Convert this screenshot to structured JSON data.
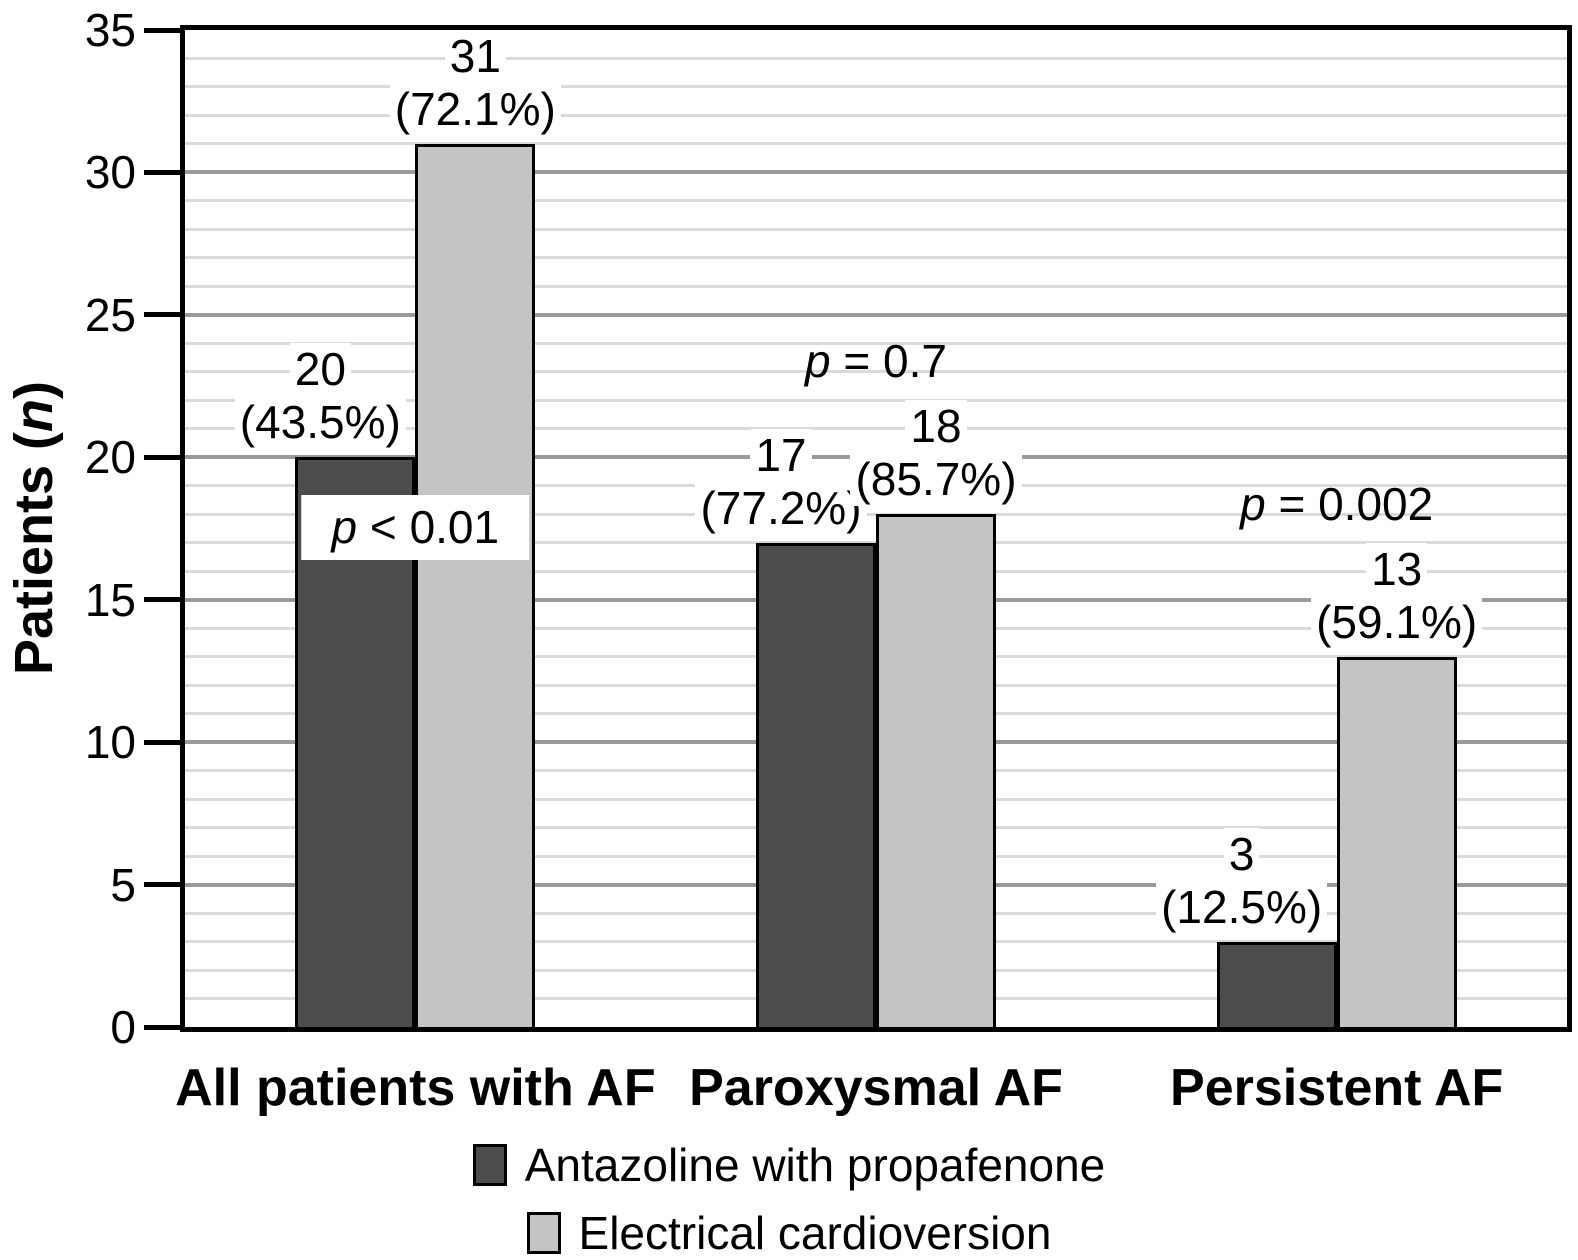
{
  "chart_data": {
    "type": "bar",
    "title": "",
    "ylabel": "Patients (n)",
    "ylabel_italic_part": "n",
    "ylim": [
      0,
      35
    ],
    "yticks": [
      0,
      5,
      10,
      15,
      20,
      25,
      30,
      35
    ],
    "ytick_step_major": 5,
    "ytick_step_minor": 1,
    "grid": "horizontal; minor line every 1 unit, major line every 5 units",
    "legend_position": "bottom",
    "categories": [
      "All patients with AF",
      "Paroxysmal AF",
      "Persistent AF"
    ],
    "series": [
      {
        "name": "Antazoline with propafenone",
        "color": "#4d4d4d",
        "values": [
          20,
          17,
          3
        ],
        "value_labels": [
          "20",
          "17",
          "3"
        ],
        "pct_labels": [
          "(43.5%)",
          "(77.2%)",
          "(12.5%)"
        ]
      },
      {
        "name": "Electrical cardioversion",
        "color": "#c4c4c4",
        "values": [
          31,
          18,
          13
        ],
        "value_labels": [
          "31",
          "18",
          "13"
        ],
        "pct_labels": [
          "(72.1%)",
          "(85.7%)",
          "(59.1%)"
        ]
      }
    ],
    "p_values": [
      {
        "text": "p < 0.01",
        "boxed": true
      },
      {
        "text": "p = 0.7",
        "boxed": false
      },
      {
        "text": "p = 0.002",
        "boxed": false
      }
    ],
    "colors": {
      "bar_border": "#000000",
      "axis": "#000000",
      "major_grid": "#9a9a9a",
      "minor_grid": "#dadada",
      "background": "#ffffff"
    }
  }
}
